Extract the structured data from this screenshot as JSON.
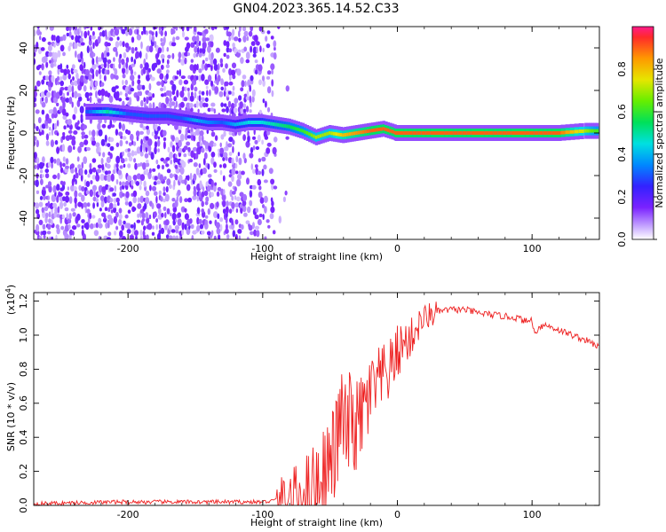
{
  "title": "GN04.2023.365.14.52.C33",
  "chart_data": [
    {
      "type": "heatmap",
      "xlabel": "Height of straight line (km)",
      "ylabel": "Frequency (Hz)",
      "colorbar_label": "Normalized spectral amplitude",
      "xlim": [
        -270,
        150
      ],
      "ylim": [
        -50,
        50
      ],
      "xticks": [
        -200,
        -100,
        0,
        100
      ],
      "yticks": [
        -40,
        -20,
        0,
        20,
        40
      ],
      "colorbar_ticks": [
        "0.0",
        "0.2",
        "0.4",
        "0.6",
        "0.8"
      ],
      "colorbar_range": [
        0,
        1
      ],
      "grid": false,
      "trace": {
        "x": [
          -230,
          -215,
          -200,
          -185,
          -170,
          -160,
          -150,
          -140,
          -130,
          -120,
          -110,
          -100,
          -90,
          -80,
          -70,
          -60,
          -50,
          -40,
          -30,
          -20,
          -10,
          0,
          20,
          40,
          60,
          80,
          100,
          120,
          140,
          150
        ],
        "freq": [
          10,
          10,
          9,
          8,
          8,
          7,
          6,
          5,
          5,
          4,
          5,
          5,
          4,
          3,
          1,
          -2,
          0,
          -1,
          0,
          1,
          2,
          0,
          0,
          0,
          0,
          0,
          0,
          0,
          1,
          1
        ],
        "amplitude": [
          0.3,
          0.5,
          0.3,
          0.3,
          0.3,
          0.3,
          0.4,
          0.35,
          0.3,
          0.4,
          0.45,
          0.45,
          0.5,
          0.55,
          0.6,
          0.7,
          0.7,
          0.8,
          0.85,
          0.9,
          0.9,
          0.9,
          0.9,
          0.9,
          0.9,
          0.9,
          0.9,
          0.9,
          0.7,
          0.6
        ]
      }
    },
    {
      "type": "line",
      "xlabel": "Height of straight line (km)",
      "ylabel": "SNR (10 * v/v)",
      "y_multiplier": "(x10",
      "y_multiplier_exp": "4",
      "xlim": [
        -270,
        150
      ],
      "ylim": [
        0,
        1.25
      ],
      "xticks": [
        -200,
        -100,
        0,
        100
      ],
      "yticks": [
        "0.0",
        "0.2",
        "0.4",
        "0.6",
        "0.8",
        "1.0",
        "1.2"
      ],
      "grid": false,
      "color": "#ee2222",
      "series": [
        {
          "x": [
            -270,
            -240,
            -210,
            -180,
            -150,
            -120,
            -100,
            -90,
            -80,
            -70,
            -60,
            -55,
            -50,
            -45,
            -42,
            -40,
            -38,
            -35,
            -30,
            -25,
            -20,
            -15,
            -10,
            -5,
            0,
            5,
            10,
            15,
            20,
            25,
            30,
            40,
            50,
            60,
            70,
            80,
            90,
            95,
            100,
            102,
            105,
            110,
            120,
            130,
            140,
            150
          ],
          "y": [
            0.01,
            0.015,
            0.02,
            0.02,
            0.02,
            0.02,
            0.02,
            0.03,
            0.04,
            0.08,
            0.15,
            0.2,
            0.25,
            0.35,
            0.55,
            0.45,
            0.4,
            0.5,
            0.45,
            0.55,
            0.65,
            0.7,
            0.75,
            0.8,
            0.9,
            0.95,
            0.98,
            1.05,
            1.1,
            1.12,
            1.14,
            1.15,
            1.15,
            1.13,
            1.12,
            1.11,
            1.1,
            1.08,
            1.09,
            1.0,
            1.05,
            1.06,
            1.03,
            1.0,
            0.97,
            0.93
          ]
        }
      ]
    }
  ]
}
